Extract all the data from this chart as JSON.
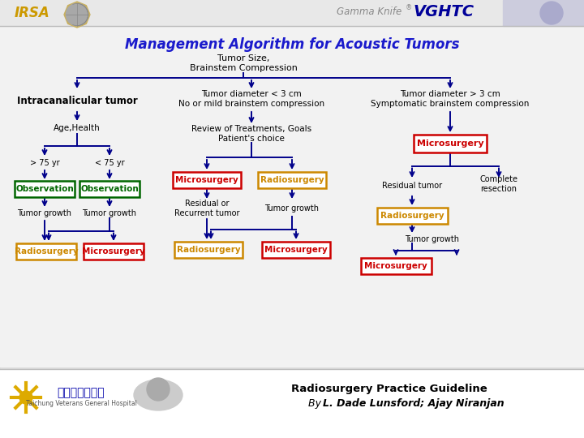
{
  "title": "Management Algorithm for Acoustic Tumors",
  "title_color": "#1a1aCC",
  "bg_color": "#D8D8D8",
  "main_bg": "#F0F0F0",
  "header_text": "Tumor Size,\nBrainstem Compression",
  "col1_header": "Intracanalicular tumor",
  "col2_header": "Tumor diameter < 3 cm\nNo or mild brainstem compression",
  "col3_header": "Tumor diameter > 3 cm\nSymptomatic brainstem compression",
  "age_health": "Age,Health",
  "gt75": "> 75 yr",
  "lt75": "< 75 yr",
  "review_text": "Review of Treatments, Goals\nPatient's choice",
  "residual_tumor_lbl": "Residual tumor",
  "complete_resection_lbl": "Complete\nresection",
  "tumor_growth_lbl": "Tumor growth",
  "residual_recurrent_lbl": "Residual or\nRecurrent tumor",
  "footer_line1": "Radiosurgery Practice Guideline",
  "footer_line2": "L. Dade Lunsford; Ajay Niranjan",
  "arrow_color": "#00008B",
  "obs_color": "#006600",
  "radio_color": "#CC8800",
  "micro_color": "#CC0000",
  "irsa_color": "#CC9900",
  "vghtc_color": "#000099",
  "top_bar_color": "#E8E8E8",
  "footer_bg": "#FFFFFF",
  "gamma_knife_color": "#888888"
}
